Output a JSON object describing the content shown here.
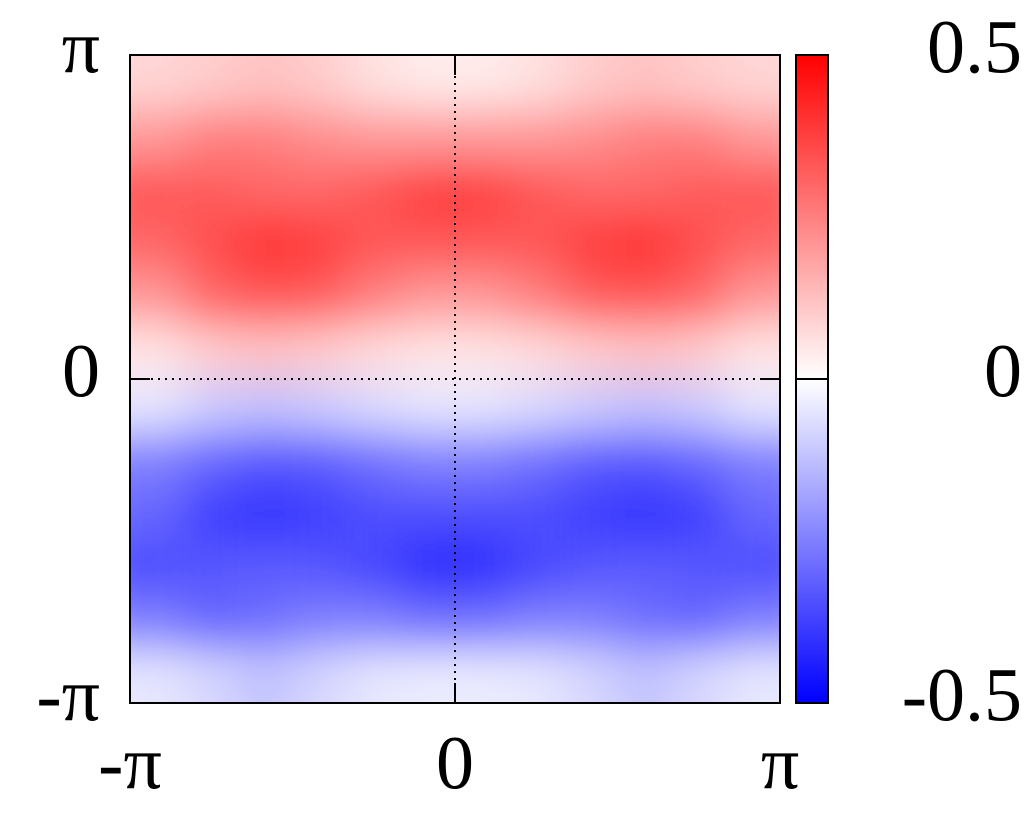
{
  "chart_data": {
    "type": "heatmap",
    "xlim": [
      -3.14159,
      3.14159
    ],
    "ylim": [
      -3.14159,
      3.14159
    ],
    "xticks": [
      {
        "value": -3.14159,
        "label": "-π"
      },
      0,
      {
        "value": 3.14159,
        "label": "π"
      }
    ],
    "yticks": [
      {
        "value": -3.14159,
        "label": "-π"
      },
      0,
      {
        "value": 3.14159,
        "label": "π"
      }
    ],
    "zlim": [
      -0.5,
      0.5
    ],
    "zticks": [
      -0.5,
      0,
      0.5
    ],
    "colormap": [
      "#0000ff",
      "#ffffff",
      "#ff0000"
    ],
    "values": [
      [
        0.08,
        0.1,
        0.12,
        0.1,
        0.06,
        0.04,
        0.04,
        0.06,
        0.1,
        0.12,
        0.1,
        0.08
      ],
      [
        0.2,
        0.25,
        0.25,
        0.22,
        0.2,
        0.2,
        0.2,
        0.2,
        0.22,
        0.25,
        0.25,
        0.2
      ],
      [
        0.33,
        0.32,
        0.3,
        0.3,
        0.33,
        0.38,
        0.38,
        0.33,
        0.3,
        0.3,
        0.32,
        0.33
      ],
      [
        0.3,
        0.35,
        0.4,
        0.38,
        0.33,
        0.33,
        0.33,
        0.33,
        0.38,
        0.4,
        0.35,
        0.3
      ],
      [
        0.2,
        0.3,
        0.33,
        0.32,
        0.25,
        0.2,
        0.2,
        0.25,
        0.32,
        0.33,
        0.3,
        0.2
      ],
      [
        0.05,
        0.1,
        0.12,
        0.1,
        0.07,
        0.05,
        0.05,
        0.07,
        0.1,
        0.12,
        0.1,
        0.05
      ],
      [
        -0.05,
        -0.1,
        -0.12,
        -0.1,
        -0.07,
        -0.05,
        -0.05,
        -0.07,
        -0.1,
        -0.12,
        -0.1,
        -0.05
      ],
      [
        -0.25,
        -0.3,
        -0.33,
        -0.32,
        -0.28,
        -0.25,
        -0.25,
        -0.28,
        -0.32,
        -0.33,
        -0.3,
        -0.25
      ],
      [
        -0.3,
        -0.38,
        -0.4,
        -0.38,
        -0.35,
        -0.35,
        -0.35,
        -0.35,
        -0.38,
        -0.4,
        -0.38,
        -0.3
      ],
      [
        -0.35,
        -0.33,
        -0.32,
        -0.33,
        -0.36,
        -0.42,
        -0.42,
        -0.36,
        -0.33,
        -0.32,
        -0.33,
        -0.35
      ],
      [
        -0.25,
        -0.3,
        -0.28,
        -0.25,
        -0.25,
        -0.28,
        -0.28,
        -0.25,
        -0.25,
        -0.28,
        -0.3,
        -0.25
      ],
      [
        -0.05,
        -0.08,
        -0.12,
        -0.08,
        -0.05,
        -0.04,
        -0.04,
        -0.05,
        -0.08,
        -0.12,
        -0.08,
        -0.05
      ]
    ]
  }
}
